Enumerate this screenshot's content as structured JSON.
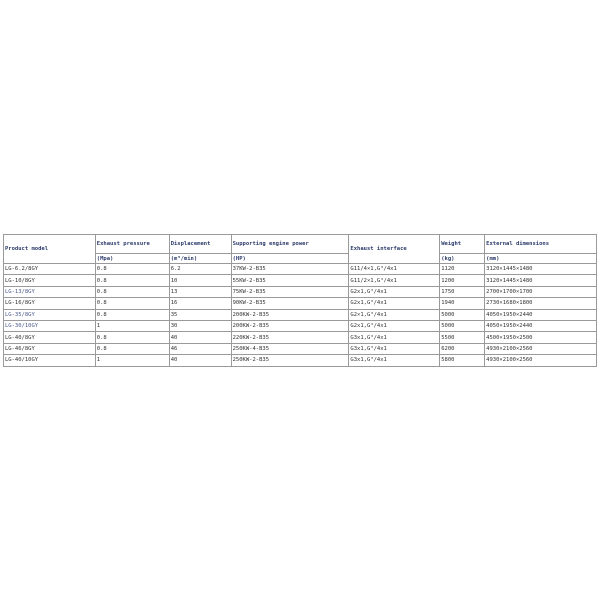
{
  "headers": {
    "product_model": "Product model",
    "exhaust_pressure": "Exhaust pressure",
    "exhaust_pressure_unit": "(Mpa)",
    "displacement": "Displacement",
    "displacement_unit": "(m³/min)",
    "engine_power": "Supporting engine power",
    "engine_power_unit": "(HP)",
    "exhaust_interface": "Exhaust interface",
    "weight": "Weight",
    "weight_unit": "(kg)",
    "dimensions": "External dimensions",
    "dimensions_unit": "(mm)"
  },
  "rows": [
    [
      "LG-6.2/8GY",
      "0.8",
      "6.2",
      "37KW-2-B35",
      "G11/4×1,G³/4x1",
      "1120",
      "3120×1445×1480"
    ],
    [
      "LG-10/8GY",
      "0.8",
      "10",
      "55KW-2-B35",
      "G11/2×1,G³/4x1",
      "1200",
      "3120×1445×1480"
    ],
    [
      "LG-13/8GY",
      "0.8",
      "13",
      "75KW-2-B35",
      "G2x1,G³/4x1",
      "1750",
      "2700×1700×1700"
    ],
    [
      "LG-16/8GY",
      "0.8",
      "16",
      "90KW-2-B35",
      "G2x1,G³/4x1",
      "1940",
      "2730×1680×1800"
    ],
    [
      "LG-35/8GY",
      "0.8",
      "35",
      "200KW-2-B35",
      "G2×1,G³/4x1",
      "5000",
      "4050×1950×2440"
    ],
    [
      "LG-30/10GY",
      "1",
      "30",
      "200KW-2-B35",
      "G2x1,G³/4x1",
      "5000",
      "4050×1950×2440"
    ],
    [
      "LG-40/8GY",
      "0.8",
      "40",
      "220KW-2-B35",
      "G3x1,G³/4x1",
      "5500",
      "4500×1950×2500"
    ],
    [
      "LG-46/8GY",
      "0.8",
      "46",
      "250KW-4-B35",
      "G3x1,G³/4x1",
      "6200",
      "4930×2100×2560"
    ],
    [
      "LG-40/10GY",
      "1",
      "40",
      "250KW-2-B35",
      "G3x1,G³/4x1",
      "5800",
      "4930×2100×2560"
    ]
  ]
}
